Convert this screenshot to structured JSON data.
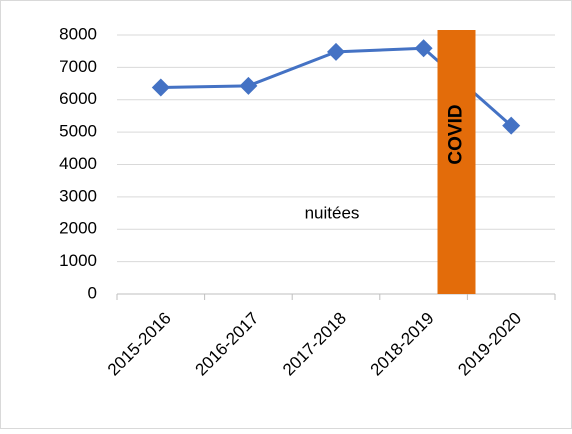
{
  "chart_data": {
    "type": "line",
    "categories": [
      "2015-2016",
      "2016-2017",
      "2017-2018",
      "2018-2019",
      "2019-2020"
    ],
    "series": [
      {
        "name": "nuitées",
        "color": "#4472c4",
        "values": [
          6380,
          6430,
          7480,
          7590,
          5200
        ]
      }
    ],
    "ylim": [
      0,
      8000
    ],
    "yticks": [
      0,
      1000,
      2000,
      3000,
      4000,
      5000,
      6000,
      7000,
      8000
    ],
    "grid": true,
    "annotation": {
      "text": "COVID",
      "color": "#e36c0a"
    }
  }
}
